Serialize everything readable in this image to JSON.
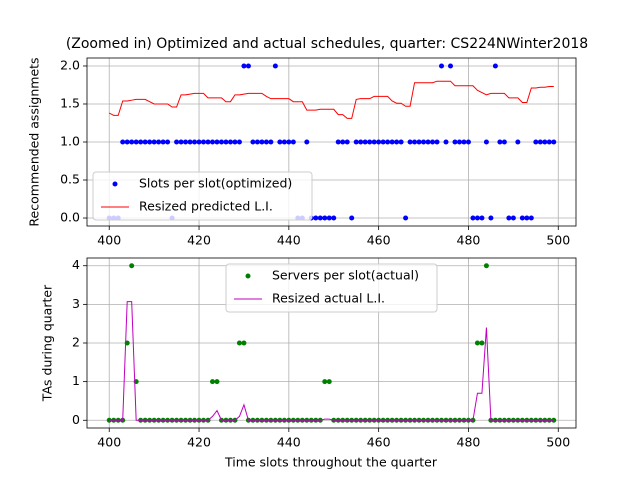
{
  "chart_data": [
    {
      "type": "scatter",
      "title": "(Zoomed in) Optimized and actual schedules, quarter: CS224NWinter2018",
      "y_label": "Recommended assignmets",
      "x": [
        400,
        401,
        402,
        403,
        404,
        405,
        406,
        407,
        408,
        409,
        410,
        411,
        412,
        413,
        414,
        415,
        416,
        417,
        418,
        419,
        420,
        421,
        422,
        423,
        424,
        425,
        426,
        427,
        428,
        429,
        430,
        431,
        432,
        433,
        434,
        435,
        436,
        437,
        438,
        439,
        440,
        441,
        442,
        443,
        444,
        445,
        446,
        447,
        448,
        449,
        450,
        451,
        452,
        453,
        454,
        455,
        456,
        457,
        458,
        459,
        460,
        461,
        462,
        463,
        464,
        465,
        466,
        467,
        468,
        469,
        470,
        471,
        472,
        473,
        474,
        475,
        476,
        477,
        478,
        479,
        480,
        481,
        482,
        483,
        484,
        485,
        486,
        487,
        488,
        489,
        490,
        491,
        492,
        493,
        494,
        495,
        496,
        497,
        498,
        499
      ],
      "series": [
        {
          "name": "Slots per slot(optimized)",
          "color": "#0000ff",
          "style": "point",
          "values": [
            0,
            0,
            0,
            1,
            1,
            1,
            1,
            1,
            1,
            1,
            1,
            1,
            1,
            1,
            0,
            1,
            1,
            1,
            1,
            1,
            1,
            1,
            1,
            1,
            1,
            1,
            1,
            1,
            1,
            1,
            2,
            2,
            1,
            1,
            1,
            1,
            1,
            2,
            1,
            1,
            1,
            1,
            0,
            0,
            1,
            0,
            0,
            0,
            0,
            0,
            0,
            1,
            1,
            1,
            0,
            1,
            1,
            1,
            1,
            1,
            1,
            1,
            1,
            1,
            1,
            1,
            0,
            1,
            1,
            1,
            1,
            1,
            1,
            1,
            2,
            1,
            2,
            1,
            1,
            1,
            1,
            0,
            0,
            0,
            1,
            0,
            2,
            1,
            1,
            0,
            0,
            1,
            0,
            0,
            0,
            1,
            1,
            1,
            1,
            1
          ]
        },
        {
          "name": "Resized predicted L.I.",
          "color": "#ff0000",
          "style": "line",
          "values": [
            1.38,
            1.35,
            1.35,
            1.54,
            1.54,
            1.55,
            1.56,
            1.56,
            1.56,
            1.53,
            1.5,
            1.5,
            1.5,
            1.5,
            1.46,
            1.46,
            1.62,
            1.62,
            1.63,
            1.64,
            1.64,
            1.64,
            1.58,
            1.58,
            1.58,
            1.58,
            1.53,
            1.53,
            1.62,
            1.62,
            1.63,
            1.64,
            1.64,
            1.64,
            1.64,
            1.6,
            1.57,
            1.57,
            1.57,
            1.57,
            1.57,
            1.53,
            1.53,
            1.53,
            1.42,
            1.42,
            1.42,
            1.43,
            1.43,
            1.43,
            1.43,
            1.36,
            1.36,
            1.31,
            1.31,
            1.56,
            1.57,
            1.57,
            1.57,
            1.6,
            1.6,
            1.6,
            1.6,
            1.54,
            1.51,
            1.51,
            1.47,
            1.47,
            1.78,
            1.78,
            1.78,
            1.78,
            1.78,
            1.8,
            1.8,
            1.8,
            1.8,
            1.74,
            1.74,
            1.74,
            1.74,
            1.74,
            1.68,
            1.65,
            1.62,
            1.64,
            1.64,
            1.64,
            1.64,
            1.58,
            1.58,
            1.58,
            1.52,
            1.52,
            1.71,
            1.71,
            1.72,
            1.72,
            1.73,
            1.73
          ]
        }
      ],
      "xlim": [
        395.05,
        503.95
      ],
      "xticks": [
        400,
        420,
        440,
        460,
        480,
        500
      ],
      "ylim": [
        -0.105,
        2.105
      ],
      "yticks": [
        {
          "value": 0,
          "label": "0.0"
        },
        {
          "value": 0.5,
          "label": "0.5"
        },
        {
          "value": 1,
          "label": "1.0"
        },
        {
          "value": 1.5,
          "label": "1.5"
        },
        {
          "value": 2,
          "label": "2.0"
        }
      ],
      "grid": true,
      "legend": "lower left"
    },
    {
      "type": "scatter",
      "x_label": "Time slots throughout the quarter",
      "y_label": "TAs during quarter",
      "x": [
        400,
        401,
        402,
        403,
        404,
        405,
        406,
        407,
        408,
        409,
        410,
        411,
        412,
        413,
        414,
        415,
        416,
        417,
        418,
        419,
        420,
        421,
        422,
        423,
        424,
        425,
        426,
        427,
        428,
        429,
        430,
        431,
        432,
        433,
        434,
        435,
        436,
        437,
        438,
        439,
        440,
        441,
        442,
        443,
        444,
        445,
        446,
        447,
        448,
        449,
        450,
        451,
        452,
        453,
        454,
        455,
        456,
        457,
        458,
        459,
        460,
        461,
        462,
        463,
        464,
        465,
        466,
        467,
        468,
        469,
        470,
        471,
        472,
        473,
        474,
        475,
        476,
        477,
        478,
        479,
        480,
        481,
        482,
        483,
        484,
        485,
        486,
        487,
        488,
        489,
        490,
        491,
        492,
        493,
        494,
        495,
        496,
        497,
        498,
        499
      ],
      "series": [
        {
          "name": "Servers per slot(actual)",
          "color": "#008000",
          "style": "point",
          "values": [
            0,
            0,
            0,
            0,
            2,
            4,
            1,
            0,
            0,
            0,
            0,
            0,
            0,
            0,
            0,
            0,
            0,
            0,
            0,
            0,
            0,
            0,
            0,
            1,
            1,
            0,
            0,
            0,
            0,
            2,
            2,
            0,
            0,
            0,
            0,
            0,
            0,
            0,
            0,
            0,
            0,
            0,
            0,
            0,
            0,
            0,
            0,
            0,
            1,
            1,
            0,
            0,
            0,
            0,
            0,
            0,
            0,
            0,
            0,
            0,
            0,
            0,
            0,
            0,
            0,
            0,
            0,
            0,
            0,
            0,
            0,
            0,
            0,
            0,
            0,
            0,
            0,
            0,
            0,
            0,
            0,
            0,
            2,
            2,
            4,
            0,
            0,
            0,
            0,
            0,
            0,
            0,
            0,
            0,
            0,
            0,
            0,
            0,
            0,
            0
          ]
        },
        {
          "name": "Resized actual L.I.",
          "color": "#bf00bf",
          "style": "line",
          "values": [
            0,
            0,
            0,
            0,
            3.07,
            3.07,
            0,
            0,
            0,
            0,
            0,
            0,
            0,
            0,
            0,
            0,
            0,
            0,
            0,
            0,
            0,
            0,
            0,
            0.1,
            0.25,
            0,
            0,
            0,
            0,
            0.1,
            0.4,
            0,
            0,
            0,
            0,
            0,
            0,
            0,
            0,
            0,
            0,
            0,
            0,
            0,
            0,
            0,
            0,
            0,
            0.03,
            0.03,
            0,
            0,
            0,
            0,
            0,
            0,
            0,
            0,
            0,
            0,
            0,
            0,
            0,
            0,
            0,
            0,
            0,
            0,
            0,
            0,
            0,
            0,
            0,
            0,
            0,
            0,
            0,
            0,
            0,
            0,
            0,
            0,
            0.7,
            0.7,
            2.4,
            0,
            0,
            0,
            0,
            0,
            0,
            0,
            0,
            0,
            0,
            0,
            0,
            0,
            0,
            0
          ]
        }
      ],
      "xlim": [
        395.05,
        503.95
      ],
      "xticks": [
        400,
        420,
        440,
        460,
        480,
        500
      ],
      "ylim": [
        -0.2,
        4.2
      ],
      "yticks": [
        0,
        1,
        2,
        3,
        4
      ],
      "grid": true,
      "legend": "upper center"
    }
  ]
}
